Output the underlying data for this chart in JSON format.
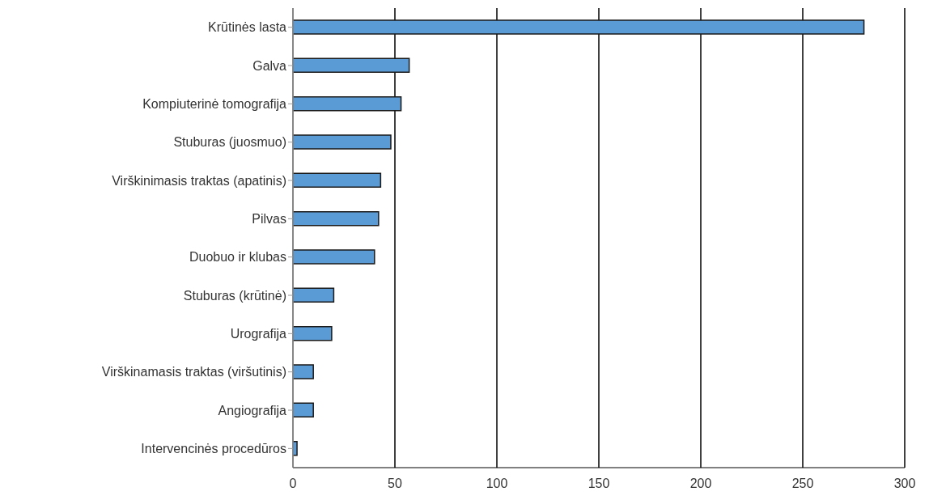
{
  "chart_data": {
    "type": "bar",
    "orientation": "horizontal",
    "categories": [
      "Krūtinės lasta",
      "Galva",
      "Kompiuterinė tomografija",
      "Stuburas (juosmuo)",
      "Virškinimasis traktas (apatinis)",
      "Pilvas",
      "Duobuo ir klubas",
      "Stuburas (krūtinė)",
      "Urografija",
      "Virškinamasis traktas (viršutinis)",
      "Angiografija",
      "Intervencinės procedūros"
    ],
    "values": [
      280,
      57,
      53,
      48,
      43,
      42,
      40,
      20,
      19,
      10,
      10,
      2
    ],
    "color": "#5b9bd5",
    "xlim": [
      0,
      300
    ],
    "xticks": [
      0,
      50,
      100,
      150,
      200,
      250,
      300
    ],
    "grid": "x"
  }
}
